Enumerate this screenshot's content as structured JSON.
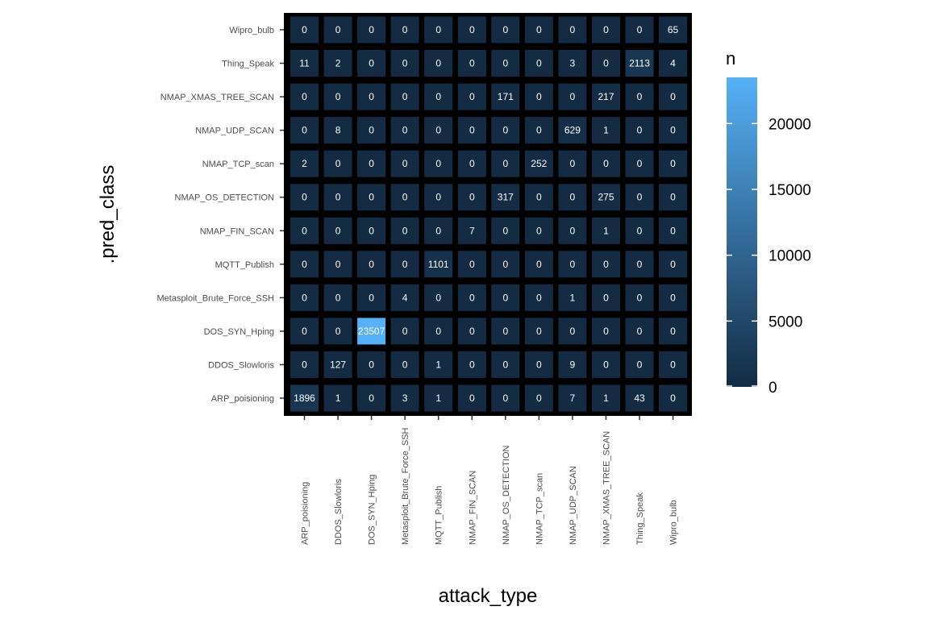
{
  "chart_data": {
    "type": "heatmap",
    "xlabel": "attack_type",
    "ylabel": ".pred_class",
    "x_categories": [
      "ARP_poisioning",
      "DDOS_Slowloris",
      "DOS_SYN_Hping",
      "Metasploit_Brute_Force_SSH",
      "MQTT_Publish",
      "NMAP_FIN_SCAN",
      "NMAP_OS_DETECTION",
      "NMAP_TCP_scan",
      "NMAP_UDP_SCAN",
      "NMAP_XMAS_TREE_SCAN",
      "Thing_Speak",
      "Wipro_bulb"
    ],
    "y_categories": [
      "ARP_poisioning",
      "DDOS_Slowloris",
      "DOS_SYN_Hping",
      "Metasploit_Brute_Force_SSH",
      "MQTT_Publish",
      "NMAP_FIN_SCAN",
      "NMAP_OS_DETECTION",
      "NMAP_TCP_scan",
      "NMAP_UDP_SCAN",
      "NMAP_XMAS_TREE_SCAN",
      "Thing_Speak",
      "Wipro_bulb"
    ],
    "values": [
      [
        1896,
        1,
        0,
        3,
        1,
        0,
        0,
        0,
        7,
        1,
        43,
        0
      ],
      [
        0,
        127,
        0,
        0,
        1,
        0,
        0,
        0,
        9,
        0,
        0,
        0
      ],
      [
        0,
        0,
        23507,
        0,
        0,
        0,
        0,
        0,
        0,
        0,
        0,
        0
      ],
      [
        0,
        0,
        0,
        4,
        0,
        0,
        0,
        0,
        1,
        0,
        0,
        0
      ],
      [
        0,
        0,
        0,
        0,
        1101,
        0,
        0,
        0,
        0,
        0,
        0,
        0
      ],
      [
        0,
        0,
        0,
        0,
        0,
        7,
        0,
        0,
        0,
        1,
        0,
        0
      ],
      [
        0,
        0,
        0,
        0,
        0,
        0,
        317,
        0,
        0,
        275,
        0,
        0
      ],
      [
        2,
        0,
        0,
        0,
        0,
        0,
        0,
        252,
        0,
        0,
        0,
        0
      ],
      [
        0,
        8,
        0,
        0,
        0,
        0,
        0,
        0,
        629,
        1,
        0,
        0
      ],
      [
        0,
        0,
        0,
        0,
        0,
        0,
        171,
        0,
        0,
        217,
        0,
        0
      ],
      [
        11,
        2,
        0,
        0,
        0,
        0,
        0,
        0,
        3,
        0,
        2113,
        4
      ],
      [
        0,
        0,
        0,
        0,
        0,
        0,
        0,
        0,
        0,
        0,
        0,
        65
      ]
    ],
    "legend": {
      "title": "n",
      "placement": "right",
      "ticks": [
        0,
        5000,
        10000,
        15000,
        20000
      ],
      "range": [
        0,
        23507
      ],
      "color_low": "#132b43",
      "color_high": "#56b1f7"
    },
    "panel_background": "#000000",
    "grid": false
  }
}
